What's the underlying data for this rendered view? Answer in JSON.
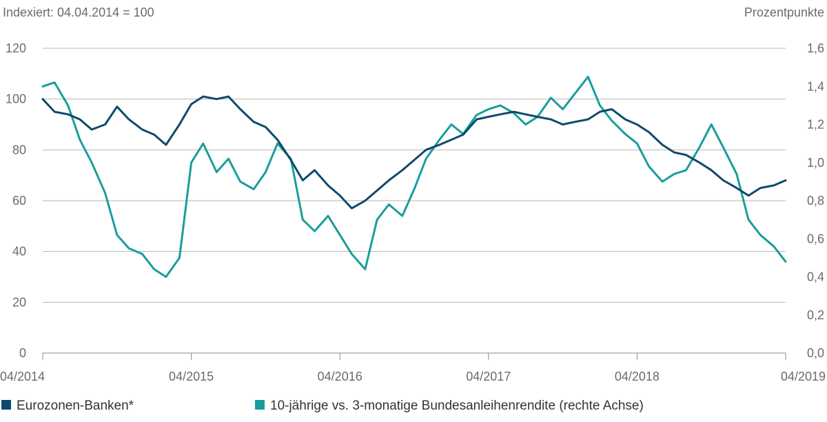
{
  "chart_data": {
    "type": "line",
    "left_axis_label": "Indexiert: 04.04.2014 = 100",
    "right_axis_label": "Prozentpunkte",
    "x_tick_labels": [
      "04/2014",
      "04/2015",
      "04/2016",
      "04/2017",
      "04/2018",
      "04/2019"
    ],
    "x_range": [
      2014.25,
      2019.25
    ],
    "y_left": {
      "ticks": [
        0,
        20,
        40,
        60,
        80,
        100,
        120
      ],
      "tick_labels": [
        "0",
        "20",
        "40",
        "60",
        "80",
        "100",
        "120"
      ],
      "range": [
        0,
        120
      ]
    },
    "y_right": {
      "ticks": [
        0,
        0.2,
        0.4,
        0.6,
        0.8,
        1.0,
        1.2,
        1.4,
        1.6
      ],
      "tick_labels": [
        "0,0",
        "0,2",
        "0,4",
        "0,6",
        "0,8",
        "1,0",
        "1,2",
        "1,4",
        "1,6"
      ],
      "range": [
        0,
        1.6
      ]
    },
    "grid": true,
    "legend_placement": "bottom",
    "series": [
      {
        "name": "Eurozonen-Banken*",
        "axis": "left",
        "color": "#0d4a6b",
        "x": [
          2014.25,
          2014.33,
          2014.42,
          2014.5,
          2014.58,
          2014.67,
          2014.75,
          2014.83,
          2014.92,
          2015.0,
          2015.08,
          2015.17,
          2015.25,
          2015.33,
          2015.42,
          2015.5,
          2015.58,
          2015.67,
          2015.75,
          2015.83,
          2015.92,
          2016.0,
          2016.08,
          2016.17,
          2016.25,
          2016.33,
          2016.42,
          2016.5,
          2016.58,
          2016.67,
          2016.75,
          2016.83,
          2016.92,
          2017.0,
          2017.08,
          2017.17,
          2017.25,
          2017.33,
          2017.42,
          2017.5,
          2017.58,
          2017.67,
          2017.75,
          2017.83,
          2017.92,
          2018.0,
          2018.08,
          2018.17,
          2018.25,
          2018.33,
          2018.42,
          2018.5,
          2018.58,
          2018.67,
          2018.75,
          2018.83,
          2018.92,
          2019.0,
          2019.08,
          2019.17,
          2019.25
        ],
        "values": [
          100,
          95,
          94,
          92,
          88,
          90,
          97,
          92,
          88,
          86,
          82,
          90,
          98,
          101,
          100,
          101,
          96,
          91,
          89,
          84,
          76,
          68,
          72,
          66,
          62,
          57,
          60,
          64,
          68,
          72,
          76,
          80,
          82,
          84,
          86,
          92,
          93,
          94,
          95,
          94,
          93,
          92,
          90,
          91,
          92,
          95,
          96,
          92,
          90,
          87,
          82,
          79,
          78,
          75,
          72,
          68,
          65,
          62,
          65,
          66,
          68
        ]
      },
      {
        "name": "10-jährige vs. 3-monatige Bundesanleihenrendite (rechte Achse)",
        "axis": "right",
        "color": "#1a9c9c",
        "x": [
          2014.25,
          2014.33,
          2014.42,
          2014.5,
          2014.58,
          2014.67,
          2014.75,
          2014.83,
          2014.92,
          2015.0,
          2015.08,
          2015.17,
          2015.25,
          2015.33,
          2015.42,
          2015.5,
          2015.58,
          2015.67,
          2015.75,
          2015.83,
          2015.92,
          2016.0,
          2016.08,
          2016.17,
          2016.25,
          2016.33,
          2016.42,
          2016.5,
          2016.58,
          2016.67,
          2016.75,
          2016.83,
          2016.92,
          2017.0,
          2017.08,
          2017.17,
          2017.25,
          2017.33,
          2017.42,
          2017.5,
          2017.58,
          2017.67,
          2017.75,
          2017.83,
          2017.92,
          2018.0,
          2018.08,
          2018.17,
          2018.25,
          2018.33,
          2018.42,
          2018.5,
          2018.58,
          2018.67,
          2018.75,
          2018.83,
          2018.92,
          2019.0,
          2019.08,
          2019.17,
          2019.25
        ],
        "values": [
          1.4,
          1.42,
          1.3,
          1.12,
          1.0,
          0.84,
          0.62,
          0.55,
          0.52,
          0.44,
          0.4,
          0.5,
          1.0,
          1.1,
          0.95,
          1.02,
          0.9,
          0.86,
          0.95,
          1.1,
          1.02,
          0.7,
          0.64,
          0.72,
          0.62,
          0.52,
          0.44,
          0.7,
          0.78,
          0.72,
          0.86,
          1.02,
          1.12,
          1.2,
          1.15,
          1.25,
          1.28,
          1.3,
          1.26,
          1.2,
          1.24,
          1.34,
          1.28,
          1.36,
          1.45,
          1.3,
          1.22,
          1.15,
          1.1,
          0.98,
          0.9,
          0.94,
          0.96,
          1.08,
          1.2,
          1.08,
          0.94,
          0.7,
          0.62,
          0.56,
          0.48
        ]
      }
    ]
  }
}
